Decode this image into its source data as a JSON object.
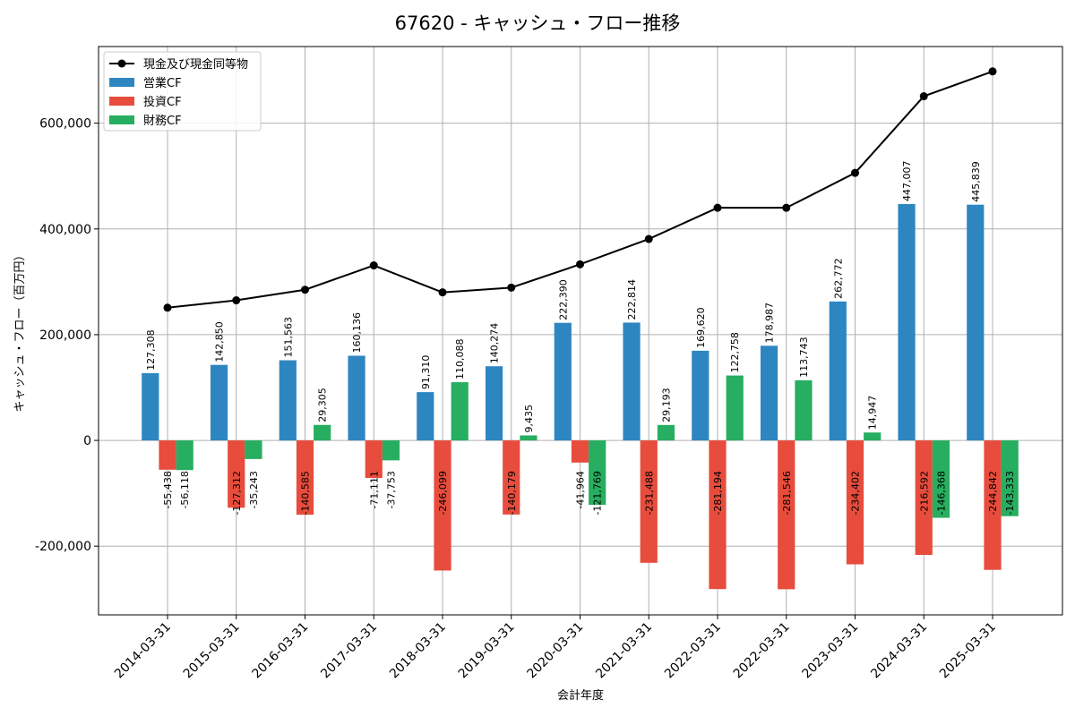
{
  "chart_data": {
    "type": "bar",
    "title": "67620 - キャッシュ・フロー推移",
    "xlabel": "会計年度",
    "ylabel": "キャッシュ・フロー（百万円）",
    "categories": [
      "2014-03-31",
      "2015-03-31",
      "2016-03-31",
      "2017-03-31",
      "2018-03-31",
      "2019-03-31",
      "2020-03-31",
      "2021-03-31",
      "2022-03-31",
      "2022-03-31",
      "2023-03-31",
      "2024-03-31",
      "2025-03-31"
    ],
    "ylim": [
      -330000,
      745000
    ],
    "yticks": [
      -200000,
      0,
      200000,
      400000,
      600000
    ],
    "ytick_labels": [
      "-200,000",
      "0",
      "200,000",
      "400,000",
      "600,000"
    ],
    "grid": true,
    "legend_position": "top-left",
    "series": [
      {
        "name": "営業CF",
        "kind": "bar",
        "color": "#2e86c1",
        "values": [
          127308,
          142850,
          151563,
          160136,
          91310,
          140274,
          222390,
          222814,
          169620,
          178987,
          262772,
          447007,
          445839
        ],
        "labels": [
          "127,308",
          "142,850",
          "151,563",
          "160,136",
          "91,310",
          "140,274",
          "222,390",
          "222,814",
          "169,620",
          "178,987",
          "262,772",
          "447,007",
          "445,839"
        ]
      },
      {
        "name": "投資CF",
        "kind": "bar",
        "color": "#e74c3c",
        "values": [
          -55438,
          -127312,
          -140585,
          -71111,
          -246099,
          -140179,
          -41964,
          -231488,
          -281194,
          -281546,
          -234402,
          -216592,
          -244842
        ],
        "labels": [
          "-55,438",
          "-127,312",
          "-140,585",
          "-71,111",
          "-246,099",
          "-140,179",
          "-41,964",
          "-231,488",
          "-281,194",
          "-281,546",
          "-234,402",
          "-216,592",
          "-244,842"
        ]
      },
      {
        "name": "財務CF",
        "kind": "bar",
        "color": "#27ae60",
        "values": [
          -56118,
          -35243,
          29305,
          -37753,
          110088,
          9435,
          -121769,
          29193,
          122758,
          113743,
          14947,
          -146368,
          -143333
        ],
        "labels": [
          "-56,118",
          "-35,243",
          "29,305",
          "-37,753",
          "110,088",
          "9,435",
          "-121,769",
          "29,193",
          "122,758",
          "113,743",
          "14,947",
          "-146,368",
          "-143,333"
        ]
      },
      {
        "name": "現金及び現金同等物",
        "kind": "line",
        "color": "#000000",
        "values": [
          251000,
          265000,
          285000,
          331000,
          280000,
          289000,
          333000,
          381000,
          440000,
          440000,
          506000,
          651000,
          698000
        ]
      }
    ]
  }
}
